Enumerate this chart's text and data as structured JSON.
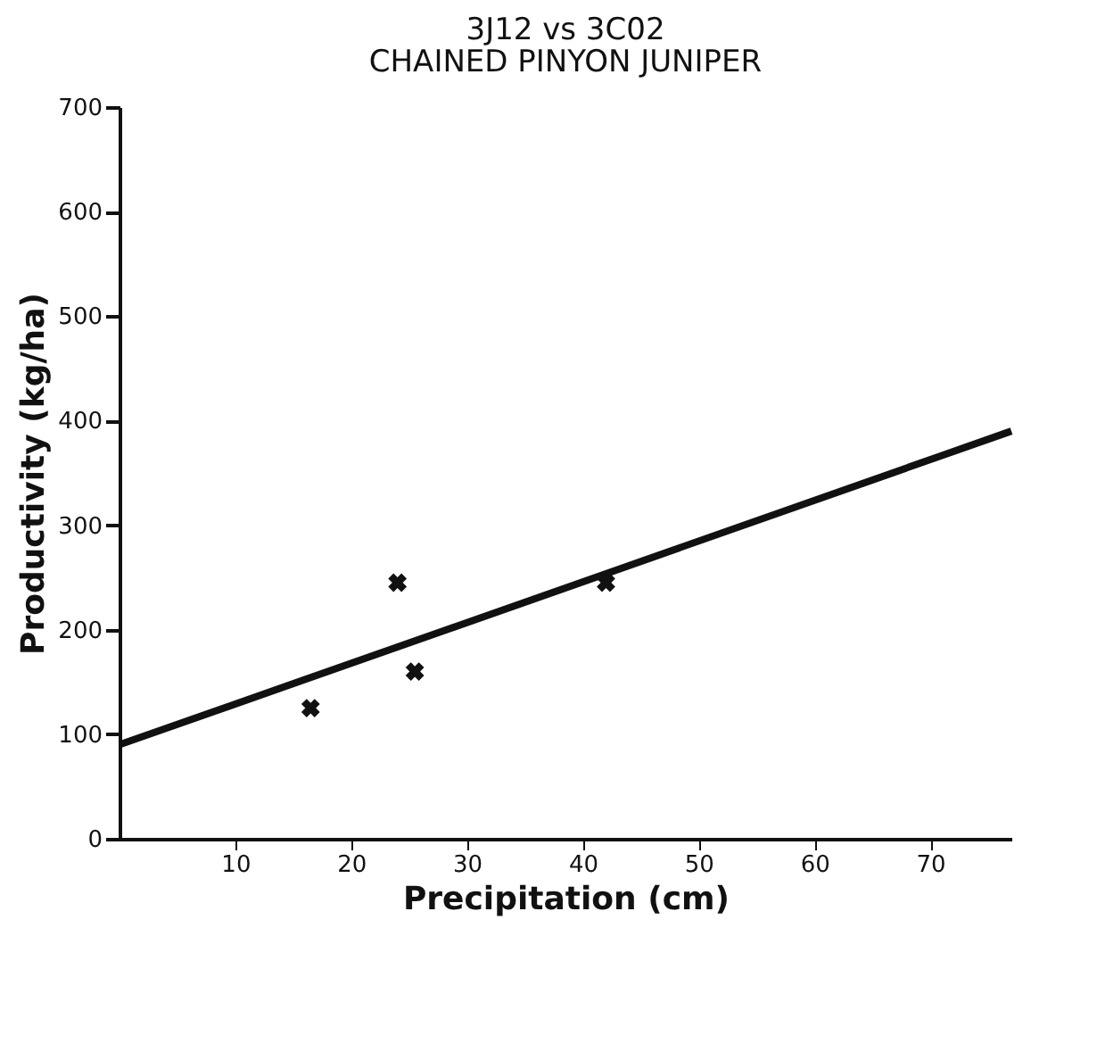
{
  "chart_data": {
    "type": "scatter",
    "title": "3J12  vs  3C02",
    "subtitle": "CHAINED  PINYON  JUNIPER",
    "xlabel": "Precipitation (cm)",
    "ylabel": "Productivity (kg/ha)",
    "xlim": [
      0,
      77
    ],
    "ylim": [
      0,
      700
    ],
    "xticks": [
      10,
      20,
      30,
      40,
      50,
      60,
      70
    ],
    "yticks": [
      0,
      100,
      200,
      300,
      400,
      500,
      600,
      700
    ],
    "grid": false,
    "marker": "cross",
    "series": [
      {
        "color": "#111111",
        "x": [
          16.5,
          24,
          25.5,
          42
        ],
        "values": [
          125,
          245,
          160,
          245
        ]
      },
      {
        "type": "line",
        "color": "#111111",
        "x": [
          0,
          77
        ],
        "values": [
          90,
          390
        ],
        "line_style": "solid",
        "marker": "none"
      }
    ]
  }
}
